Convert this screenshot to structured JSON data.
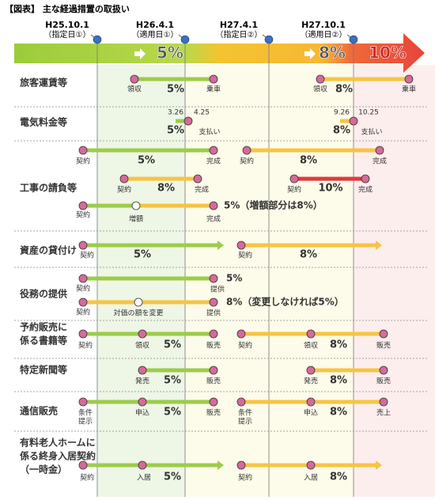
{
  "header": {
    "title": "【図表】 主な経過措置の取扱い"
  },
  "timeline": [
    {
      "date": "H25.10.1",
      "label": "（指定日①）"
    },
    {
      "date": "H26.4.1",
      "label": "（適用日①）"
    },
    {
      "date": "H27.4.1",
      "label": "（指定日②）"
    },
    {
      "date": "H27.10.1",
      "label": "（適用日②）"
    }
  ],
  "rates": [
    "5%",
    "8%",
    "10%"
  ],
  "rows": [
    {
      "label": [
        "旅客運賃等"
      ],
      "texts": [
        "領収",
        "5%",
        "乗車",
        "領収",
        "8%",
        "乗車"
      ]
    },
    {
      "label": [
        "電気料金等"
      ],
      "texts": [
        "3.26",
        "4.25",
        "5%",
        "支払い",
        "9.26",
        "10.25",
        "8%",
        "支払い"
      ]
    },
    {
      "label": [
        "工事の請負等"
      ],
      "texts": [
        "契約",
        "5%",
        "完成",
        "契約",
        "8%",
        "完成",
        "契約",
        "8%",
        "完成",
        "契約",
        "10%",
        "完成",
        "契約",
        "増額",
        "完成",
        "5%（増額部分は8%）"
      ]
    },
    {
      "label": [
        "資産の貸付け"
      ],
      "texts": [
        "契約",
        "5%",
        "契約",
        "8%"
      ]
    },
    {
      "label": [
        "役務の提供"
      ],
      "texts": [
        "契約",
        "提供",
        "5%",
        "契約",
        "対価の額を変更",
        "提供",
        "8%（変更しなければ5%）"
      ]
    },
    {
      "label": [
        "予約販売に",
        "係る書籍等"
      ],
      "texts": [
        "契約",
        "領収",
        "5%",
        "販売",
        "契約",
        "領収",
        "8%",
        "販売"
      ]
    },
    {
      "label": [
        "特定新聞等"
      ],
      "texts": [
        "発売",
        "5%",
        "販売",
        "発売",
        "8%",
        "販売"
      ]
    },
    {
      "label": [
        "通信販売"
      ],
      "texts": [
        "条件",
        "提示",
        "申込",
        "5%",
        "販売",
        "条件",
        "提示",
        "申込",
        "8%",
        "売上"
      ]
    },
    {
      "label": [
        "有料老人ホームに",
        "係る終身入居契約",
        "（一時金）"
      ],
      "texts": [
        "契約",
        "入居",
        "5%",
        "契約",
        "入居",
        "8%"
      ]
    }
  ]
}
